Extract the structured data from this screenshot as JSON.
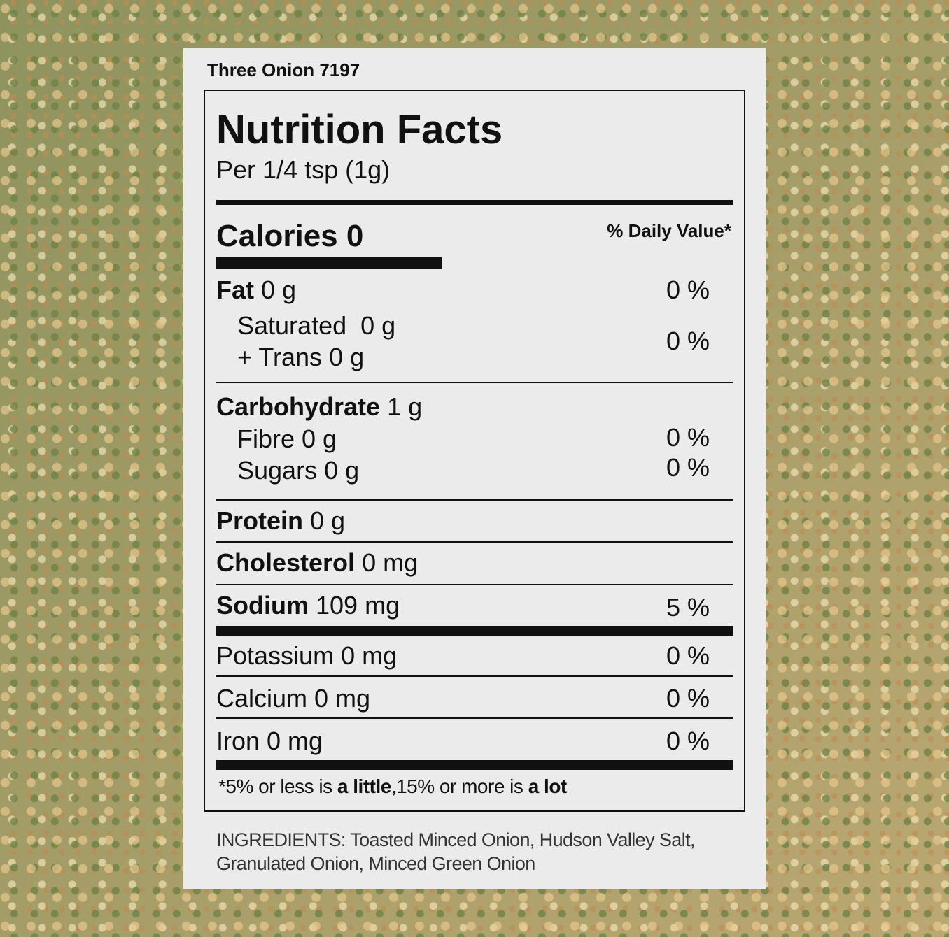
{
  "product": "Three Onion 7197",
  "label": {
    "title": "Nutrition Facts",
    "serving": "Per 1/4 tsp (1g)",
    "calories": "Calories 0",
    "dv_header": "% Daily Value*",
    "fat": {
      "name": "Fat",
      "amount": "0 g",
      "dv": "0 %"
    },
    "saturated_trans": {
      "saturated": "Saturated  0 g",
      "trans": "+ Trans 0 g",
      "dv": "0 %"
    },
    "carbohydrate": {
      "name": "Carbohydrate",
      "amount": "1 g"
    },
    "fibre": {
      "text": "Fibre 0 g",
      "dv": "0 %"
    },
    "sugars": {
      "text": "Sugars 0 g",
      "dv": "0 %"
    },
    "protein": {
      "name": "Protein",
      "amount": "0 g"
    },
    "cholesterol": {
      "name": "Cholesterol",
      "amount": "0 mg"
    },
    "sodium": {
      "name": "Sodium",
      "amount": "109 mg",
      "dv": "5 %"
    },
    "potassium": {
      "text": "Potassium 0 mg",
      "dv": "0 %"
    },
    "calcium": {
      "text": "Calcium 0 mg",
      "dv": "0 %"
    },
    "iron": {
      "text": "Iron 0 mg",
      "dv": "0 %"
    },
    "footnote": [
      "*5% or less is ",
      "a little",
      ",15% or more is ",
      "a lot"
    ]
  },
  "ingredients": [
    "INGREDIENTS: Toasted Minced Onion, Hudson Valley Salt,",
    "Granulated Onion, Minced Green Onion"
  ]
}
